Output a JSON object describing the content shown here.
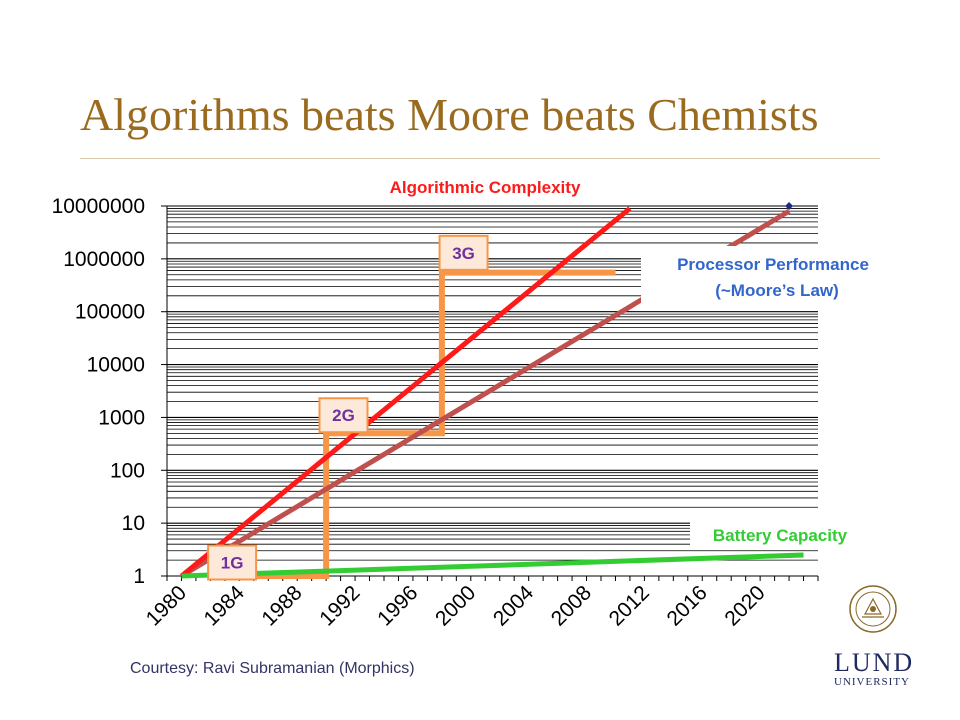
{
  "slide": {
    "title": "Algorithms beats Moore beats Chemists",
    "courtesy": "Courtesy: Ravi Subramanian (Morphics)"
  },
  "logo": {
    "name_line1": "LUND",
    "name_line2": "UNIVERSITY",
    "icon": "lund-university-seal-icon"
  },
  "chart_data": {
    "type": "line",
    "title": "",
    "xlabel": "",
    "ylabel": "",
    "y_scale": "log",
    "ylim": [
      1,
      10000000
    ],
    "xlim": [
      1979,
      2024
    ],
    "x_ticks": [
      1980,
      1984,
      1988,
      1992,
      1996,
      2000,
      2004,
      2008,
      2012,
      2016,
      2020
    ],
    "y_ticks": [
      1,
      10,
      100,
      1000,
      10000,
      100000,
      1000000,
      10000000
    ],
    "y_tick_labels": [
      "1",
      "10",
      "100",
      "1000",
      "10000",
      "100000",
      "1000000",
      "10000000"
    ],
    "grid": "horizontal",
    "series": [
      {
        "name": "Algorithmic Complexity",
        "color": "#ff1a1a",
        "points": [
          [
            1980,
            1
          ],
          [
            2011,
            9000000
          ]
        ]
      },
      {
        "name": "Processor Performance (~Moore’s Law)",
        "color": "#c0504d",
        "points": [
          [
            1980,
            1
          ],
          [
            2022,
            8000000
          ]
        ]
      },
      {
        "name": "Battery Capacity",
        "color": "#33cc33",
        "points": [
          [
            1980,
            1
          ],
          [
            2023,
            2.5
          ]
        ]
      },
      {
        "name": "",
        "color": "#f79646",
        "step": true,
        "points": [
          [
            1983,
            1
          ],
          [
            1990,
            1
          ],
          [
            1990,
            500
          ],
          [
            1998,
            500
          ],
          [
            1998,
            550000
          ],
          [
            2010,
            550000
          ]
        ]
      }
    ],
    "labels": [
      {
        "text": "Algorithmic Complexity",
        "color": "#ff1a1a"
      },
      {
        "text_lines": [
          "Processor Performance",
          "(~Moore’s Law)"
        ],
        "color": "#3366cc"
      },
      {
        "text": "Battery Capacity",
        "color": "#33cc33"
      }
    ],
    "generation_boxes": [
      {
        "text": "1G",
        "x": 1983.5,
        "y": 1.8
      },
      {
        "text": "2G",
        "x": 1991.2,
        "y": 1100
      },
      {
        "text": "3G",
        "x": 1999.5,
        "y": 1300000
      }
    ],
    "marker": {
      "x": 2022,
      "y": 10000000,
      "color": "#1f2a80"
    }
  }
}
